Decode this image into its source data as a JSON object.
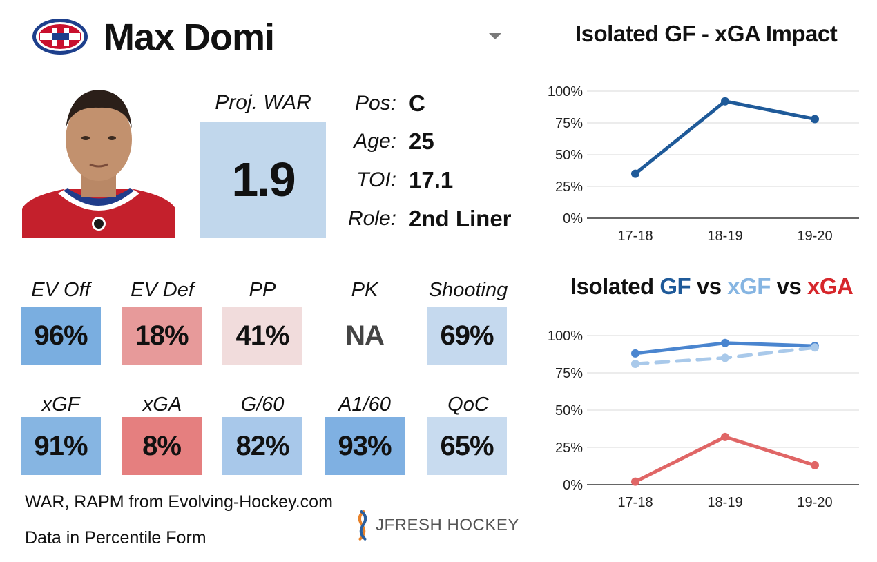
{
  "header": {
    "player_name": "Max Domi",
    "logo_icon": "canadiens-logo-icon"
  },
  "war": {
    "label": "Proj. WAR",
    "value": "1.9"
  },
  "info": [
    {
      "label": "Pos:",
      "value": "C"
    },
    {
      "label": "Age:",
      "value": "25"
    },
    {
      "label": "TOI:",
      "value": "17.1"
    },
    {
      "label": "Role:",
      "value": "2nd Liner"
    }
  ],
  "stats": [
    {
      "label": "EV Off",
      "value": "96%",
      "pct": 96,
      "color": "#7aaee0"
    },
    {
      "label": "EV Def",
      "value": "18%",
      "pct": 18,
      "color": "#e79a9a"
    },
    {
      "label": "PP",
      "value": "41%",
      "pct": 41,
      "color": "#f1dcdc"
    },
    {
      "label": "PK",
      "value": "NA",
      "pct": null,
      "color": "#ffffff"
    },
    {
      "label": "Shooting",
      "value": "69%",
      "pct": 69,
      "color": "#c5d9ee"
    },
    {
      "label": "xGF",
      "value": "91%",
      "pct": 91,
      "color": "#86b5e2"
    },
    {
      "label": "xGA",
      "value": "8%",
      "pct": 8,
      "color": "#e57f7f"
    },
    {
      "label": "G/60",
      "value": "82%",
      "pct": 82,
      "color": "#a8c8ea"
    },
    {
      "label": "A1/60",
      "value": "93%",
      "pct": 93,
      "color": "#7fb0e2"
    },
    {
      "label": "QoC",
      "value": "65%",
      "pct": 65,
      "color": "#c8dbef"
    }
  ],
  "footer": {
    "line1": "WAR, RAPM from  Evolving-Hockey.com",
    "line2": "Data in Percentile Form",
    "brand": "JFRESH HOCKEY"
  },
  "chart_data": [
    {
      "type": "line",
      "title": "Isolated GF - xGA Impact",
      "categories": [
        "17-18",
        "18-19",
        "19-20"
      ],
      "series": [
        {
          "values": [
            35,
            92,
            78
          ],
          "color": "#1f5a99",
          "dashed": false
        }
      ],
      "ylim": [
        0,
        100
      ],
      "yticks": [
        "0%",
        "25%",
        "50%",
        "75%",
        "100%"
      ],
      "grid": true
    },
    {
      "type": "line",
      "title_parts": [
        {
          "text": "Isolated ",
          "color": "#111111"
        },
        {
          "text": "GF",
          "color": "#1f5a99"
        },
        {
          "text": " vs ",
          "color": "#111111"
        },
        {
          "text": "xGF",
          "color": "#86b5e2"
        },
        {
          "text": " vs ",
          "color": "#111111"
        },
        {
          "text": "xGA",
          "color": "#d6262b"
        }
      ],
      "categories": [
        "17-18",
        "18-19",
        "19-20"
      ],
      "series": [
        {
          "values": [
            88,
            95,
            93
          ],
          "color": "#4a85cf",
          "dashed": false
        },
        {
          "values": [
            81,
            85,
            92
          ],
          "color": "#a9c9ea",
          "dashed": true
        },
        {
          "values": [
            2,
            32,
            13
          ],
          "color": "#e06666",
          "dashed": false
        }
      ],
      "ylim": [
        0,
        100
      ],
      "yticks": [
        "0%",
        "25%",
        "50%",
        "75%",
        "100%"
      ],
      "grid": true
    }
  ]
}
